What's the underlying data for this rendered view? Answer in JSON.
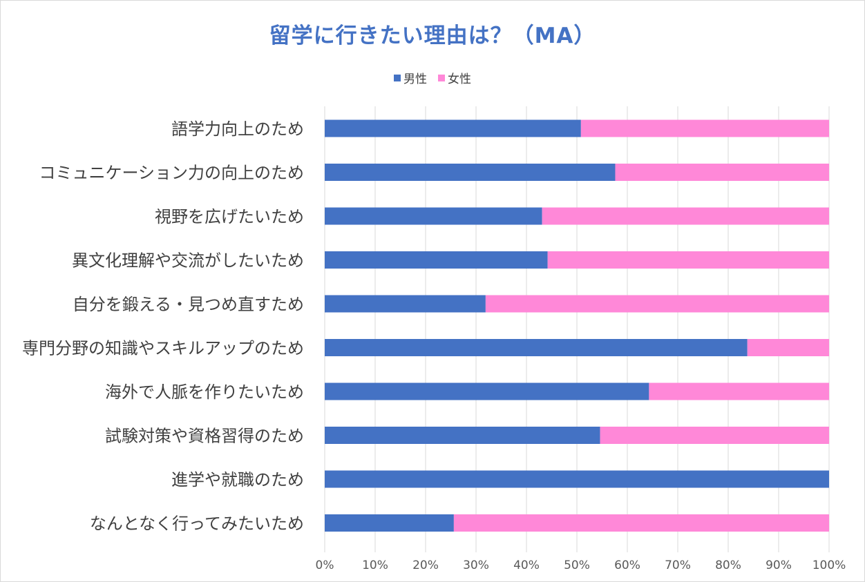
{
  "chart_data": {
    "type": "bar",
    "orientation": "horizontal",
    "stacked": "percent",
    "title": "留学に行きたい理由は？（MA）",
    "legend": {
      "position": "top",
      "entries": [
        "男性",
        "女性"
      ]
    },
    "categories": [
      "語学力向上のため",
      "コミュニケーション力の向上のため",
      "視野を広げたいため",
      "異文化理解や交流がしたいため",
      "自分を鍛える・見つめ直すため",
      "専門分野の知識やスキルアップのため",
      "海外で人脈を作りたいため",
      "試験対策や資格習得のため",
      "進学や就職のため",
      "なんとなく行ってみたいため"
    ],
    "series": [
      {
        "name": "男性",
        "color": "#4472c4",
        "values": [
          50.8,
          57.6,
          43.1,
          44.2,
          31.9,
          83.8,
          64.3,
          54.6,
          100,
          25.6
        ]
      },
      {
        "name": "女性",
        "color": "#ff88d8",
        "values": [
          49.2,
          42.4,
          56.9,
          55.8,
          68.1,
          16.2,
          35.7,
          45.4,
          0,
          74.4
        ]
      }
    ],
    "xlim": [
      0,
      100
    ],
    "xticks": [
      "0%",
      "10%",
      "20%",
      "30%",
      "40%",
      "50%",
      "60%",
      "70%",
      "80%",
      "90%",
      "100%"
    ],
    "grid": true,
    "xlabel": "",
    "ylabel": ""
  }
}
